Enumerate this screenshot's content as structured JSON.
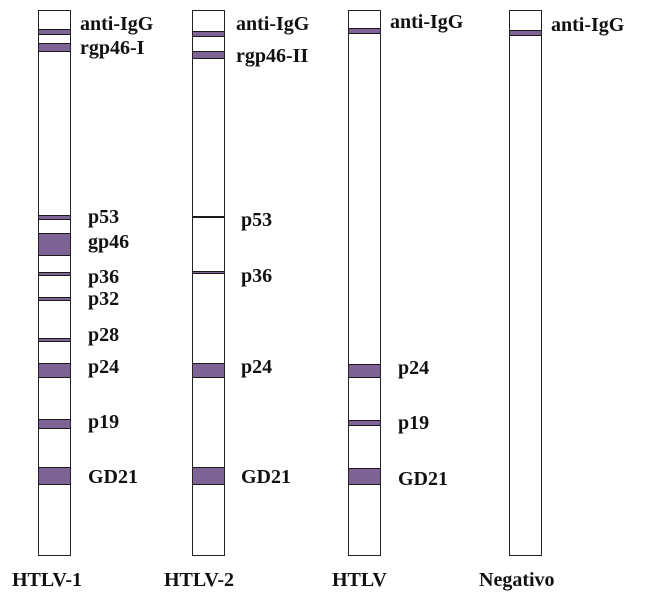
{
  "colors": {
    "band": "#7e6397",
    "outline": "#222222"
  },
  "strips": [
    {
      "name": "HTLV-1",
      "bands": [
        {
          "label": "anti-IgG"
        },
        {
          "label": "rgp46-I"
        },
        {
          "label": "p53"
        },
        {
          "label": "gp46"
        },
        {
          "label": "p36"
        },
        {
          "label": "p32"
        },
        {
          "label": "p28"
        },
        {
          "label": "p24"
        },
        {
          "label": "p19"
        },
        {
          "label": "GD21"
        }
      ]
    },
    {
      "name": "HTLV-2",
      "bands": [
        {
          "label": "anti-IgG"
        },
        {
          "label": "rgp46-II"
        },
        {
          "label": "p53"
        },
        {
          "label": "p36"
        },
        {
          "label": "p24"
        },
        {
          "label": "GD21"
        }
      ]
    },
    {
      "name": "HTLV",
      "bands": [
        {
          "label": "anti-IgG"
        },
        {
          "label": "p24"
        },
        {
          "label": "p19"
        },
        {
          "label": "GD21"
        }
      ]
    },
    {
      "name": "Negativo",
      "bands": [
        {
          "label": "anti-IgG"
        }
      ]
    }
  ]
}
